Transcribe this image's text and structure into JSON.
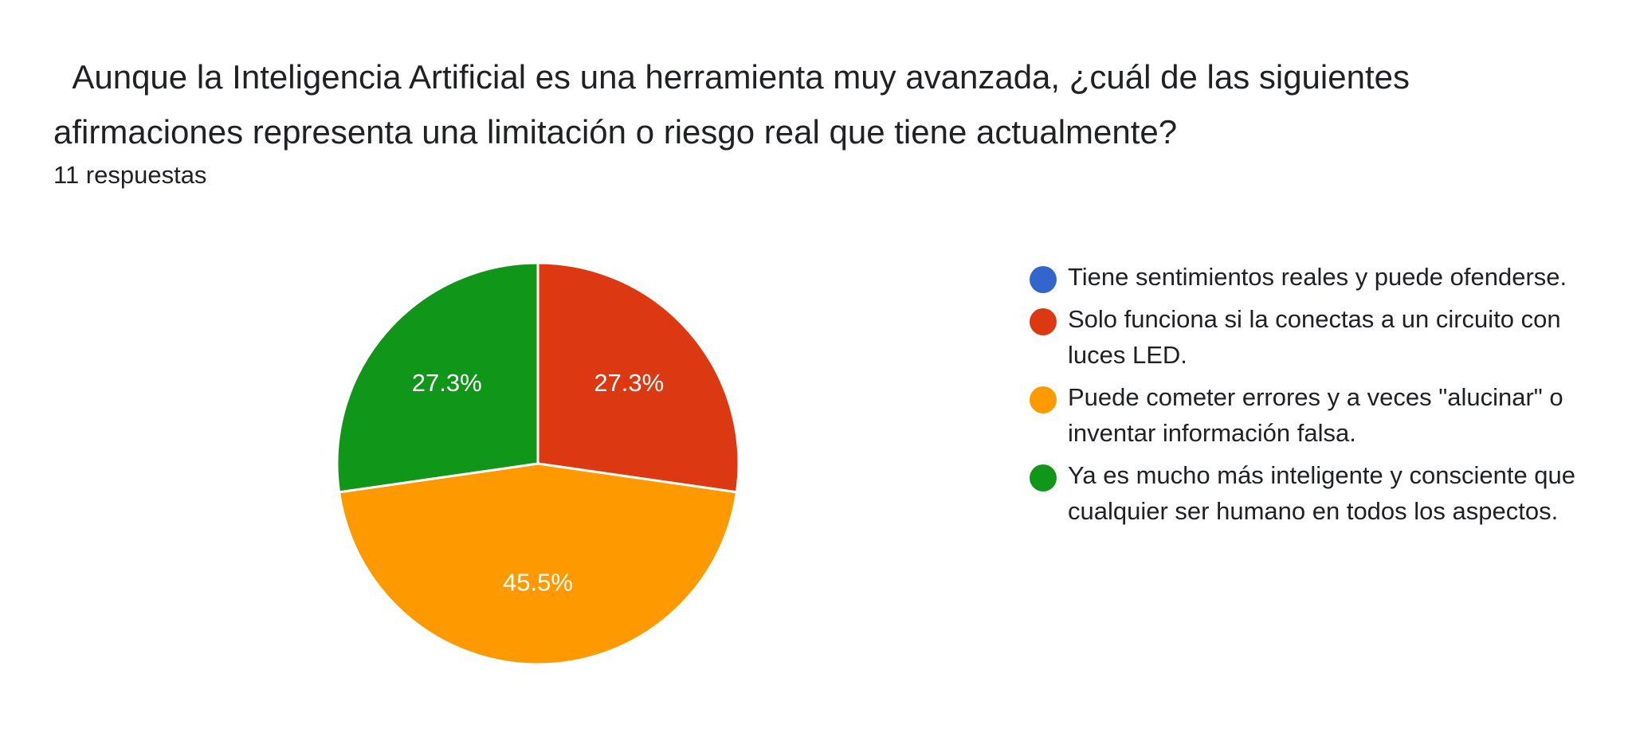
{
  "question": "  Aunque la Inteligencia Artificial es una herramienta muy avanzada, ¿cuál de las siguientes afirmaciones representa una limitación o riesgo real que tiene actualmente?",
  "response_count": "11 respuestas",
  "chart_data": {
    "type": "pie",
    "title": "",
    "slices": [
      {
        "label": "Tiene sentimientos reales y puede ofenderse.",
        "value": 0,
        "percent_label": "",
        "color": "#3366cc"
      },
      {
        "label": "Solo funciona si la conectas a un circuito con luces LED.",
        "value": 27.3,
        "percent_label": "27.3%",
        "color": "#dc3912"
      },
      {
        "label": "Puede cometer errores y a veces \"alucinar\" o inventar información falsa.",
        "value": 45.5,
        "percent_label": "45.5%",
        "color": "#ff9900"
      },
      {
        "label": "Ya es mucho más inteligente y consciente que cualquier ser humano en todos los aspectos.",
        "value": 27.3,
        "percent_label": "27.3%",
        "color": "#109618"
      }
    ],
    "start_angle_deg": 90,
    "direction": "clockwise",
    "legend_position": "right"
  }
}
